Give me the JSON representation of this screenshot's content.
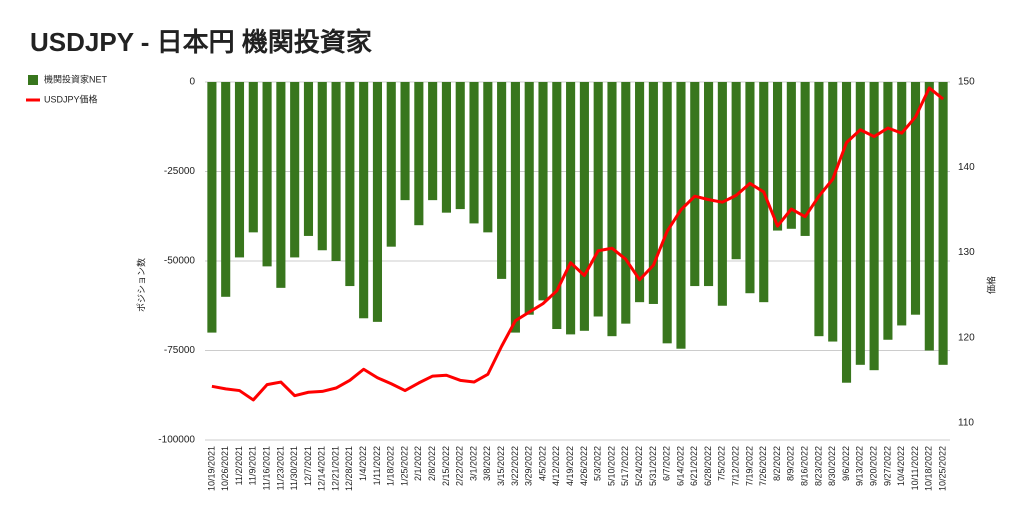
{
  "chart_data": {
    "type": "bar-line",
    "title": "USDJPY - 日本円 機関投資家",
    "categories": [
      "10/19/2021",
      "10/26/2021",
      "11/2/2021",
      "11/9/2021",
      "11/16/2021",
      "11/23/2021",
      "11/30/2021",
      "12/7/2021",
      "12/14/2021",
      "12/21/2021",
      "12/28/2021",
      "1/4/2022",
      "1/11/2022",
      "1/18/2022",
      "1/25/2022",
      "2/1/2022",
      "2/8/2022",
      "2/15/2022",
      "2/22/2022",
      "3/1/2022",
      "3/8/2022",
      "3/15/2022",
      "3/22/2022",
      "3/29/2022",
      "4/5/2022",
      "4/12/2022",
      "4/19/2022",
      "4/26/2022",
      "5/3/2022",
      "5/10/2022",
      "5/17/2022",
      "5/24/2022",
      "5/31/2022",
      "6/7/2022",
      "6/14/2022",
      "6/21/2022",
      "6/28/2022",
      "7/5/2022",
      "7/12/2022",
      "7/19/2022",
      "7/26/2022",
      "8/2/2022",
      "8/9/2022",
      "8/16/2022",
      "8/23/2022",
      "8/30/2022",
      "9/6/2022",
      "9/13/2022",
      "9/20/2022",
      "9/27/2022",
      "10/4/2022",
      "10/11/2022",
      "10/18/2022",
      "10/25/2022"
    ],
    "series": [
      {
        "name": "機関投資家NET",
        "color": "#38761d",
        "kind": "bar",
        "values": [
          -70000,
          -60000,
          -49000,
          -42000,
          -51500,
          -57500,
          -49000,
          -43000,
          -47000,
          -50000,
          -57000,
          -66000,
          -67000,
          -46000,
          -33000,
          -40000,
          -33000,
          -36500,
          -35500,
          -39500,
          -42000,
          -55000,
          -70000,
          -65000,
          -61000,
          -69000,
          -70500,
          -69500,
          -65500,
          -71000,
          -67500,
          -61500,
          -62000,
          -73000,
          -74500,
          -57000,
          -57000,
          -62500,
          -49500,
          -59000,
          -61500,
          -41500,
          -41000,
          -43000,
          -71000,
          -72500,
          -84000,
          -79000,
          -80500,
          -72000,
          -68000,
          -65000,
          -75000,
          -79000
        ]
      },
      {
        "name": "USDJPY価格",
        "color": "#ff0000",
        "kind": "line",
        "axis": "y2",
        "values": [
          114.3,
          114.0,
          113.8,
          112.7,
          114.5,
          114.8,
          113.2,
          113.6,
          113.7,
          114.1,
          115.0,
          116.3,
          115.3,
          114.6,
          113.8,
          114.7,
          115.5,
          115.6,
          115.0,
          114.8,
          115.7,
          119.0,
          122.0,
          123.0,
          124.0,
          125.5,
          128.8,
          127.3,
          130.2,
          130.5,
          129.2,
          126.8,
          128.5,
          132.5,
          135.0,
          136.6,
          136.2,
          135.9,
          136.7,
          138.1,
          137.1,
          133.1,
          135.1,
          134.2,
          136.6,
          138.6,
          142.9,
          144.4,
          143.6,
          144.6,
          144.0,
          145.9,
          149.3,
          148.0
        ]
      }
    ],
    "y_label": "ポジション数",
    "y2_label": "価格",
    "ylim": [
      -100000,
      0
    ],
    "yticks": [
      0,
      -25000,
      -50000,
      -75000,
      -100000
    ],
    "y2lim": [
      108,
      150
    ],
    "y2ticks": [
      110,
      120,
      130,
      140,
      150
    ],
    "grid": true,
    "legend": "left"
  }
}
